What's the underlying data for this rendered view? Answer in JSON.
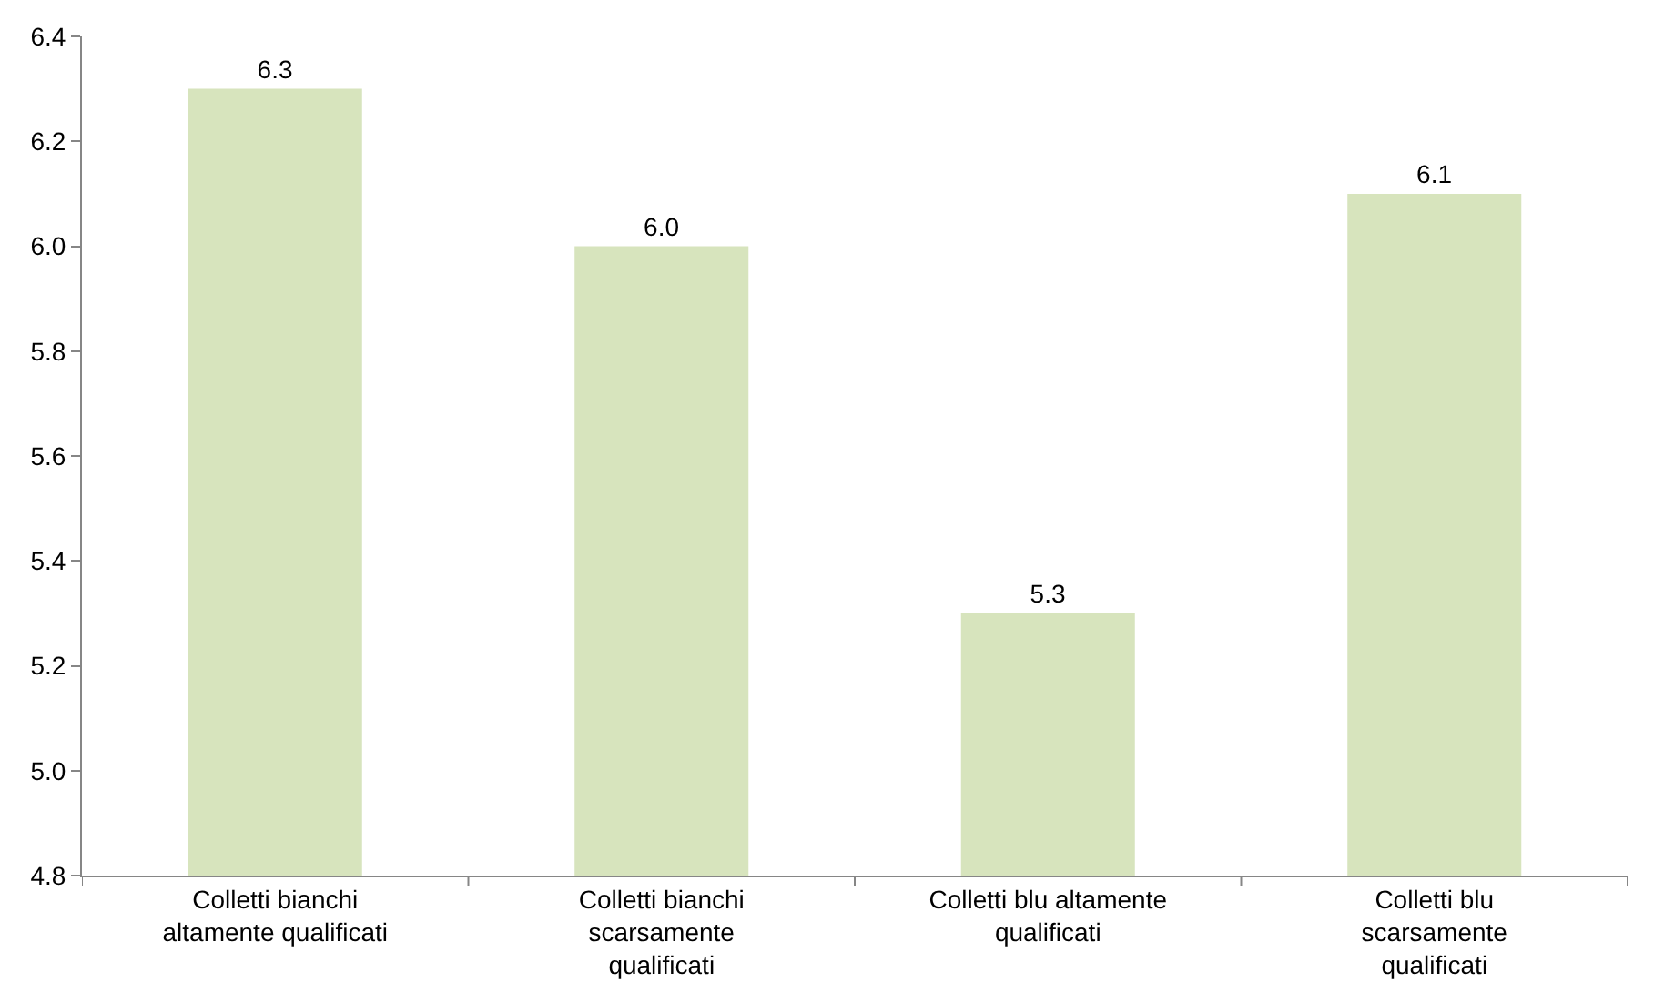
{
  "chart_data": {
    "type": "bar",
    "categories": [
      "Colletti bianchi altamente qualificati",
      "Colletti bianchi scarsamente qualificati",
      "Colletti blu altamente qualificati",
      "Colletti blu scarsamente qualificati"
    ],
    "values": [
      6.3,
      6.0,
      5.3,
      6.1
    ],
    "value_labels": [
      "6.3",
      "6.0",
      "5.3",
      "6.1"
    ],
    "color": "#d7e4bd",
    "ylim": [
      4.8,
      6.4
    ],
    "yticks": [
      {
        "value": 4.8,
        "label": "4.8"
      },
      {
        "value": 5.0,
        "label": "5.0"
      },
      {
        "value": 5.2,
        "label": "5.2"
      },
      {
        "value": 5.4,
        "label": "5.4"
      },
      {
        "value": 5.6,
        "label": "5.6"
      },
      {
        "value": 5.8,
        "label": "5.8"
      },
      {
        "value": 6.0,
        "label": "6.0"
      },
      {
        "value": 6.2,
        "label": "6.2"
      },
      {
        "value": 6.4,
        "label": "6.4"
      }
    ],
    "grid": false
  }
}
